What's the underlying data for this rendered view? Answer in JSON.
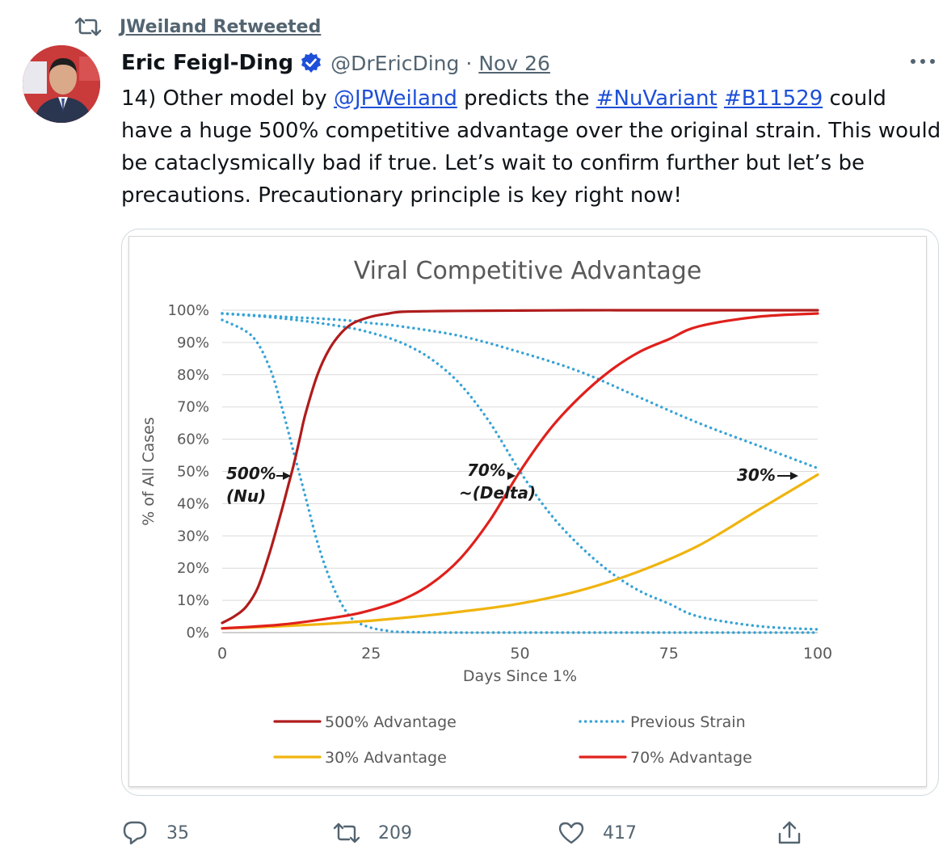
{
  "retweet": {
    "label": "JWeiland Retweeted",
    "icon": "retweet-icon"
  },
  "author": {
    "name": "Eric Feigl-Ding",
    "handle": "@DrEricDing",
    "separator": "·",
    "date": "Nov 26",
    "verified": true
  },
  "tweet": {
    "number": "14) Other model by ",
    "mention": "@JPWeiland",
    "after_mention": " predicts the ",
    "hashtag1": "#NuVariant",
    "space": " ",
    "hashtag2": "#B11529",
    "rest": " could have a huge 500% competitive advantage over the original strain. This would be cataclysmically bad if true. Let’s wait to confirm further but let’s be precautions. Precautionary principle is key right now!"
  },
  "stats": {
    "replies": "35",
    "retweets": "209",
    "likes": "417"
  },
  "colors": {
    "accent_link": "#1d4fd8",
    "muted": "#536471"
  },
  "chart_data": {
    "type": "line",
    "title": "Viral Competitive Advantage",
    "xlabel": "Days Since 1%",
    "ylabel": "% of All Cases",
    "xlim": [
      0,
      100
    ],
    "ylim": [
      0,
      100
    ],
    "xticks": [
      0,
      25,
      50,
      75,
      100
    ],
    "yticks": [
      0,
      10,
      20,
      30,
      40,
      50,
      60,
      70,
      80,
      90,
      100
    ],
    "ytick_labels": [
      "0%",
      "10%",
      "20%",
      "30%",
      "40%",
      "50%",
      "60%",
      "70%",
      "80%",
      "90%",
      "100%"
    ],
    "grid": true,
    "legend_position": "bottom",
    "series": [
      {
        "name": "500% Advantage",
        "color": "#b01c1c",
        "style": "solid",
        "x": [
          0,
          2,
          4,
          6,
          8,
          10,
          11,
          12,
          13,
          14,
          16,
          18,
          20,
          22,
          25,
          28,
          30,
          35,
          40,
          50,
          60,
          70,
          80,
          90,
          100
        ],
        "y": [
          3,
          5,
          8,
          14,
          25,
          38,
          45,
          52,
          60,
          68,
          80,
          88,
          93,
          96,
          98,
          99,
          99.5,
          99.7,
          99.8,
          99.9,
          100,
          100,
          100,
          100,
          100
        ]
      },
      {
        "name": "Previous Strain",
        "color": "#37a3d6",
        "style": "dotted",
        "x": [
          0,
          10,
          20,
          25,
          30,
          40,
          50,
          60,
          70,
          80,
          90,
          100
        ],
        "y": [
          99,
          98,
          97,
          96,
          95,
          92,
          87,
          81,
          73,
          65,
          58,
          51
        ]
      },
      {
        "name": "30% Advantage",
        "color": "#f0b40f",
        "style": "solid",
        "x": [
          0,
          10,
          20,
          30,
          40,
          50,
          60,
          70,
          80,
          90,
          100
        ],
        "y": [
          1.3,
          2,
          3,
          4.5,
          6.5,
          9,
          13,
          19,
          27,
          38,
          49
        ]
      },
      {
        "name": "70% Advantage",
        "color": "#e0201c",
        "style": "solid",
        "x": [
          0,
          10,
          20,
          25,
          30,
          35,
          40,
          45,
          50,
          55,
          60,
          65,
          70,
          75,
          80,
          90,
          100
        ],
        "y": [
          1.3,
          2.5,
          5,
          7,
          10,
          15,
          23,
          35,
          50,
          63,
          73,
          81,
          87,
          91,
          95,
          98,
          99
        ]
      },
      {
        "name": "",
        "color": "#37a3d6",
        "style": "dotted",
        "x": [
          0,
          5,
          8,
          10,
          12,
          14,
          16,
          18,
          20,
          22,
          25,
          28,
          30,
          40,
          50,
          100
        ],
        "y": [
          97,
          92,
          82,
          70,
          56,
          42,
          28,
          17,
          9,
          4,
          1.5,
          0.5,
          0.2,
          0,
          0,
          0
        ]
      },
      {
        "name": "",
        "color": "#37a3d6",
        "style": "dotted",
        "x": [
          0,
          10,
          20,
          25,
          30,
          35,
          40,
          45,
          50,
          55,
          60,
          65,
          70,
          75,
          80,
          90,
          100
        ],
        "y": [
          99,
          97.5,
          95,
          93,
          90,
          85,
          77,
          65,
          50,
          37,
          27,
          19,
          13,
          9,
          5,
          2,
          1
        ]
      }
    ],
    "annotations": [
      {
        "lines": [
          "500%",
          "(Nu)"
        ],
        "x": 12,
        "y": 50
      },
      {
        "lines": [
          "70%",
          "~(Delta)"
        ],
        "x": 50,
        "y": 50
      },
      {
        "lines": [
          "30%"
        ],
        "x": 100,
        "y": 51
      }
    ]
  }
}
